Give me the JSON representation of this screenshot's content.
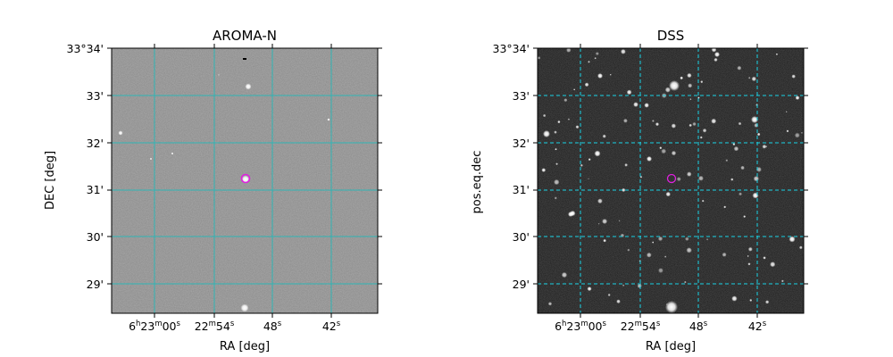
{
  "panels": [
    {
      "id": "aroma",
      "title": "AROMA-N",
      "xlabel": "RA [deg]",
      "ylabel": "DEC [deg]",
      "background": "#8a8a8a",
      "grid_color": "#2fb5b5",
      "grid_style": "solid",
      "dec_ticks": [
        "33°34'",
        "33'",
        "32'",
        "31'",
        "30'",
        "29'"
      ],
      "ra_ticks": [
        {
          "h": "6",
          "hs": "h",
          "m": "23",
          "ms": "m",
          "s": "00",
          "ss": "s"
        },
        {
          "m": "22",
          "ms": "m",
          "s": "54",
          "ss": "s"
        },
        {
          "s": "48",
          "ss": "s"
        },
        {
          "s": "42",
          "ss": "s"
        }
      ]
    },
    {
      "id": "dss",
      "title": "DSS",
      "xlabel": "RA [deg]",
      "ylabel": "pos.eq.dec",
      "background": "#1a1a1a",
      "grid_color": "#19d3e6",
      "grid_style": "dashed",
      "dec_ticks": [
        "33°34'",
        "33'",
        "32'",
        "31'",
        "30'",
        "29'"
      ],
      "ra_ticks": [
        {
          "h": "6",
          "hs": "h",
          "m": "23",
          "ms": "m",
          "s": "00",
          "ss": "s"
        },
        {
          "m": "22",
          "ms": "m",
          "s": "54",
          "ss": "s"
        },
        {
          "s": "48",
          "ss": "s"
        },
        {
          "s": "42",
          "ss": "s"
        }
      ]
    }
  ],
  "target_marker_color": "#e020e0"
}
